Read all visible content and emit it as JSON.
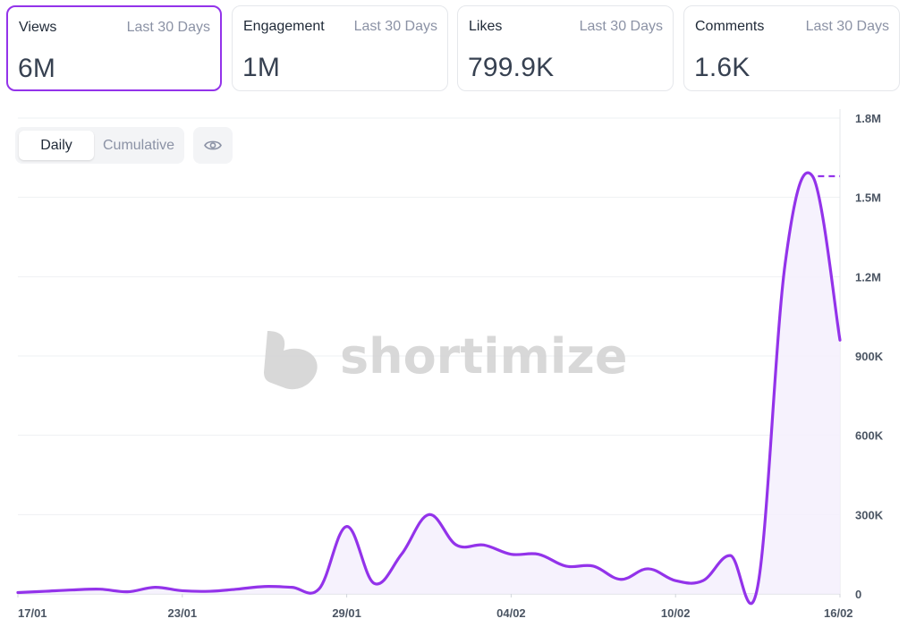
{
  "cards": [
    {
      "name": "Views",
      "period": "Last 30 Days",
      "value": "6M",
      "active": true
    },
    {
      "name": "Engagement",
      "period": "Last 30 Days",
      "value": "1M",
      "active": false
    },
    {
      "name": "Likes",
      "period": "Last 30 Days",
      "value": "799.9K",
      "active": false
    },
    {
      "name": "Comments",
      "period": "Last 30 Days",
      "value": "1.6K",
      "active": false
    }
  ],
  "toggle": {
    "daily": "Daily",
    "cumulative": "Cumulative",
    "selected": "Daily"
  },
  "icons": {
    "visibility": "eye-icon",
    "watermark_logo": "shortimize-logo-icon"
  },
  "watermark": "shortimize",
  "colors": {
    "accent": "#9333ea",
    "line": "#9333ea",
    "fill": "#f5f0fd"
  },
  "chart_data": {
    "type": "area",
    "y_tick_labels": [
      "0",
      "300K",
      "600K",
      "900K",
      "1.2M",
      "1.5M",
      "1.8M"
    ],
    "ylim": [
      0,
      1800000
    ],
    "x_tick_labels": [
      "17/01",
      "23/01",
      "29/01",
      "04/02",
      "10/02",
      "16/02"
    ],
    "x": [
      "17/01",
      "18/01",
      "19/01",
      "20/01",
      "21/01",
      "22/01",
      "23/01",
      "24/01",
      "25/01",
      "26/01",
      "27/01",
      "28/01",
      "29/01",
      "30/01",
      "31/01",
      "01/02",
      "02/02",
      "03/02",
      "04/02",
      "05/02",
      "06/02",
      "07/02",
      "08/02",
      "09/02",
      "10/02",
      "11/02",
      "12/02",
      "13/02",
      "14/02",
      "15/02",
      "16/02"
    ],
    "series": [
      {
        "values": [
          5000,
          10000,
          15000,
          18000,
          8000,
          25000,
          12000,
          10000,
          18000,
          28000,
          25000,
          20000,
          255000,
          40000,
          150000,
          300000,
          185000,
          185000,
          150000,
          150000,
          105000,
          105000,
          55000,
          95000,
          50000,
          50000,
          145000,
          30000,
          1250000,
          1580000,
          960000
        ]
      }
    ],
    "max_marker": {
      "value": 1580000,
      "style": "dashed"
    },
    "grid": true,
    "legend": "none"
  }
}
